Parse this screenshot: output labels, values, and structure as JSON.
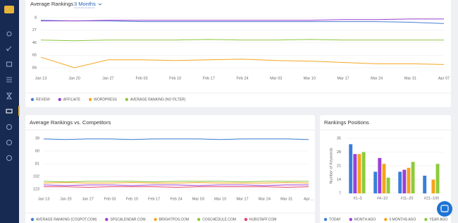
{
  "chart_data": [
    {
      "type": "line",
      "title": "Average Rankings",
      "filter": "3 Months",
      "categories": [
        "Jan 13",
        "Jan 20",
        "Jan 27",
        "Feb 03",
        "Feb 10",
        "Feb 17",
        "Feb 24",
        "Mar 03",
        "Mar 10",
        "Mar 17",
        "Mar 24",
        "Mar 31",
        "Apr 07"
      ],
      "ylim": [
        84,
        8
      ],
      "yticks": [
        8,
        27,
        46,
        65,
        84
      ],
      "grid": true,
      "series": [
        {
          "name": "REVIEW",
          "color": "#4a7fd4",
          "values": [
            12,
            13,
            13,
            14,
            14,
            14,
            14,
            14,
            14,
            14,
            14,
            15,
            17
          ]
        },
        {
          "name": "AFFILIATE",
          "color": "#9b3fd0",
          "values": [
            13,
            13,
            12,
            12,
            12,
            12,
            12,
            12,
            12,
            11,
            11,
            10,
            10
          ]
        },
        {
          "name": "WORDPRESS",
          "color": "#f5a623",
          "values": [
            68,
            84,
            72,
            72,
            73,
            72,
            71,
            73,
            74,
            76,
            78,
            78,
            79
          ]
        },
        {
          "name": "AVERAGE RANKING (NO FILTER)",
          "color": "#8cc63f",
          "values": [
            42,
            43,
            42,
            42,
            42,
            41,
            42,
            42,
            41,
            42,
            42,
            42,
            42
          ]
        }
      ]
    },
    {
      "type": "line",
      "title": "Average Rankings vs. Competitors",
      "categories": [
        "Jan 13",
        "Jan 20",
        "Jan 27",
        "Feb 03",
        "Feb 10",
        "Feb 17",
        "Feb 24",
        "Mar 03",
        "Mar 10",
        "Mar 17",
        "Mar 24",
        "Mar 31",
        "Apr…"
      ],
      "ylim": [
        123,
        39
      ],
      "yticks": [
        39,
        60,
        81,
        102,
        123
      ],
      "grid": true,
      "series": [
        {
          "name": "AVERAGE RANKING (COSPOT.COM)",
          "color": "#3d7fd6",
          "values": [
            40,
            41,
            40,
            40,
            41,
            40,
            40,
            40,
            41,
            40,
            40,
            40,
            41
          ]
        },
        {
          "name": "SPSCALENDAR.COM",
          "color": "#a03fc7",
          "values": [
            116,
            117,
            116,
            116,
            117,
            116,
            116,
            117,
            116,
            116,
            117,
            116,
            116
          ]
        },
        {
          "name": "BRIGHTPOS.COM",
          "color": "#f5a623",
          "values": [
            113,
            112,
            113,
            113,
            112,
            113,
            113,
            112,
            113,
            113,
            113,
            112,
            113
          ]
        },
        {
          "name": "COSCHEDULE.COM",
          "color": "#8cc63f",
          "values": [
            110,
            111,
            110,
            110,
            110,
            111,
            110,
            110,
            110,
            111,
            110,
            110,
            110
          ]
        },
        {
          "name": "HUBSTAFF.COM",
          "color": "#e6416a",
          "values": [
            119,
            119,
            120,
            119,
            119,
            119,
            120,
            119,
            119,
            119,
            119,
            120,
            119
          ]
        }
      ]
    },
    {
      "type": "bar",
      "title": "Rankings Positions",
      "y_label": "Number of Keywords",
      "categories": [
        "#1–3",
        "#4–10",
        "#11–20",
        "#21–100"
      ],
      "ylim": [
        7,
        35
      ],
      "yticks": [
        7,
        14,
        21,
        28,
        35
      ],
      "grid": true,
      "series": [
        {
          "name": "TODAY",
          "color": "#3b7ddd",
          "values": [
            32,
            18,
            18,
            16
          ]
        },
        {
          "name": "MONTH AGO",
          "color": "#9b3fd6",
          "values": [
            27,
            25,
            19,
            null
          ]
        },
        {
          "name": "3 MONTHS AGO",
          "color": "#f5a31a",
          "values": [
            27,
            22,
            20,
            14
          ]
        },
        {
          "name": "YEAR AGO",
          "color": "#8ccc3a",
          "values": [
            28,
            15,
            23,
            22
          ]
        }
      ]
    }
  ]
}
